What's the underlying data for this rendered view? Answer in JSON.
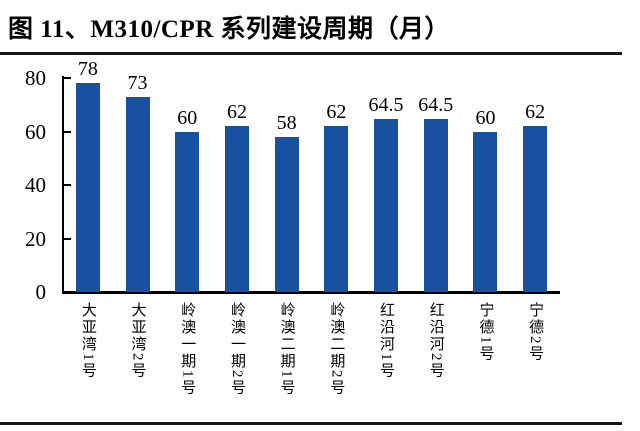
{
  "title": "图 11、M310/CPR 系列建设周期（月）",
  "chart_data": {
    "type": "bar",
    "title": "图 11、M310/CPR 系列建设周期（月）",
    "categories": [
      "大亚湾1号",
      "大亚湾2号",
      "岭澳一期1号",
      "岭澳一期2号",
      "岭澳二期1号",
      "岭澳二期2号",
      "红沿河1号",
      "红沿河2号",
      "宁德1号",
      "宁德2号"
    ],
    "values": [
      78,
      73,
      60,
      62,
      58,
      62,
      64.5,
      64.5,
      60,
      62
    ],
    "value_labels": [
      "78",
      "73",
      "60",
      "62",
      "58",
      "62",
      "64.5",
      "64.5",
      "60",
      "62"
    ],
    "xlabel": "",
    "ylabel": "",
    "y_ticks": [
      0,
      20,
      40,
      60,
      80
    ],
    "ylim": [
      0,
      80
    ],
    "grid": false,
    "legend_position": "none",
    "bar_color": "#17519F",
    "axis_color": "#000000",
    "label_color": "#000000"
  }
}
